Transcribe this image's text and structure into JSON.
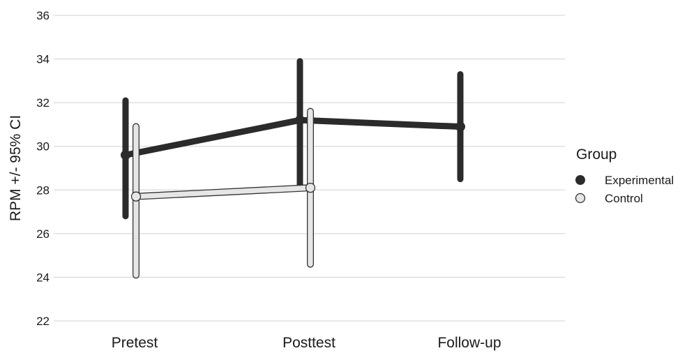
{
  "chart_data": {
    "type": "line",
    "ylabel": "RPM +/- 95% CI",
    "ylim": [
      22,
      36
    ],
    "yticks": [
      "22",
      "24",
      "26",
      "28",
      "30",
      "32",
      "34",
      "36"
    ],
    "categories": [
      "Pretest",
      "Posttest",
      "Follow-up"
    ],
    "grid": "horizontal",
    "legend": {
      "title": "Group",
      "position": "right"
    },
    "series": [
      {
        "name": "Experimental",
        "color": "#2b2b2b",
        "values": [
          29.6,
          31.2,
          30.9
        ],
        "ci_low": [
          26.8,
          28.1,
          28.5
        ],
        "ci_high": [
          32.1,
          33.9,
          33.3
        ]
      },
      {
        "name": "Control",
        "color": "#e6e6e6",
        "values": [
          27.7,
          28.1,
          null
        ],
        "ci_low": [
          24.1,
          24.6,
          null
        ],
        "ci_high": [
          30.9,
          31.6,
          null
        ]
      }
    ]
  }
}
